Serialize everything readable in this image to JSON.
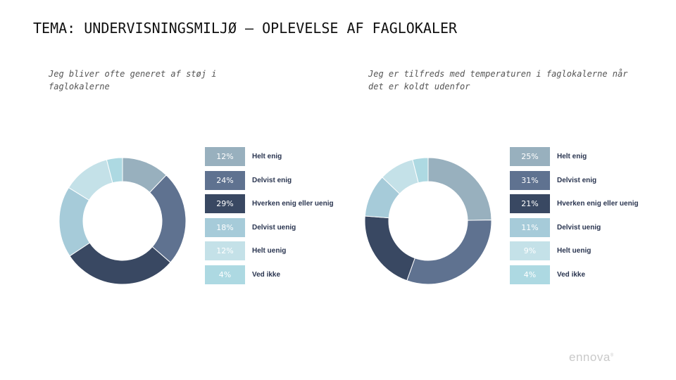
{
  "page": {
    "title": "TEMA: UNDERVISNINGSMILJØ – OPLEVELSE AF FAGLOKALER"
  },
  "logo": {
    "text": "ennova"
  },
  "chart_data": [
    {
      "type": "pie",
      "title": "Jeg bliver ofte generet af støj i faglokalerne",
      "categories": [
        "Helt enig",
        "Delvist enig",
        "Hverken enig eller uenig",
        "Delvist uenig",
        "Helt uenig",
        "Ved ikke"
      ],
      "values": [
        12,
        24,
        29,
        18,
        12,
        4
      ],
      "value_labels": [
        "12%",
        "24%",
        "29%",
        "18%",
        "12%",
        "4%"
      ],
      "colors": [
        "#98b0be",
        "#5f7290",
        "#394862",
        "#a6cbd9",
        "#c4e1e8",
        "#add9e2"
      ],
      "label_colors": [
        "#ffffff",
        "#ffffff",
        "#ffffff",
        "#ffffff",
        "#ffffff",
        "#ffffff"
      ],
      "legend": "right"
    },
    {
      "type": "pie",
      "title": "Jeg er tilfreds med temperaturen i faglokalerne når det er koldt udenfor",
      "categories": [
        "Helt enig",
        "Delvist enig",
        "Hverken enig eller uenig",
        "Delvist uenig",
        "Helt uenig",
        "Ved ikke"
      ],
      "values": [
        25,
        31,
        21,
        11,
        9,
        4
      ],
      "value_labels": [
        "25%",
        "31%",
        "21%",
        "11%",
        "9%",
        "4%"
      ],
      "colors": [
        "#98b0be",
        "#5f7290",
        "#394862",
        "#a6cbd9",
        "#c4e1e8",
        "#add9e2"
      ],
      "label_colors": [
        "#ffffff",
        "#ffffff",
        "#ffffff",
        "#ffffff",
        "#ffffff",
        "#ffffff"
      ],
      "legend": "right"
    }
  ]
}
